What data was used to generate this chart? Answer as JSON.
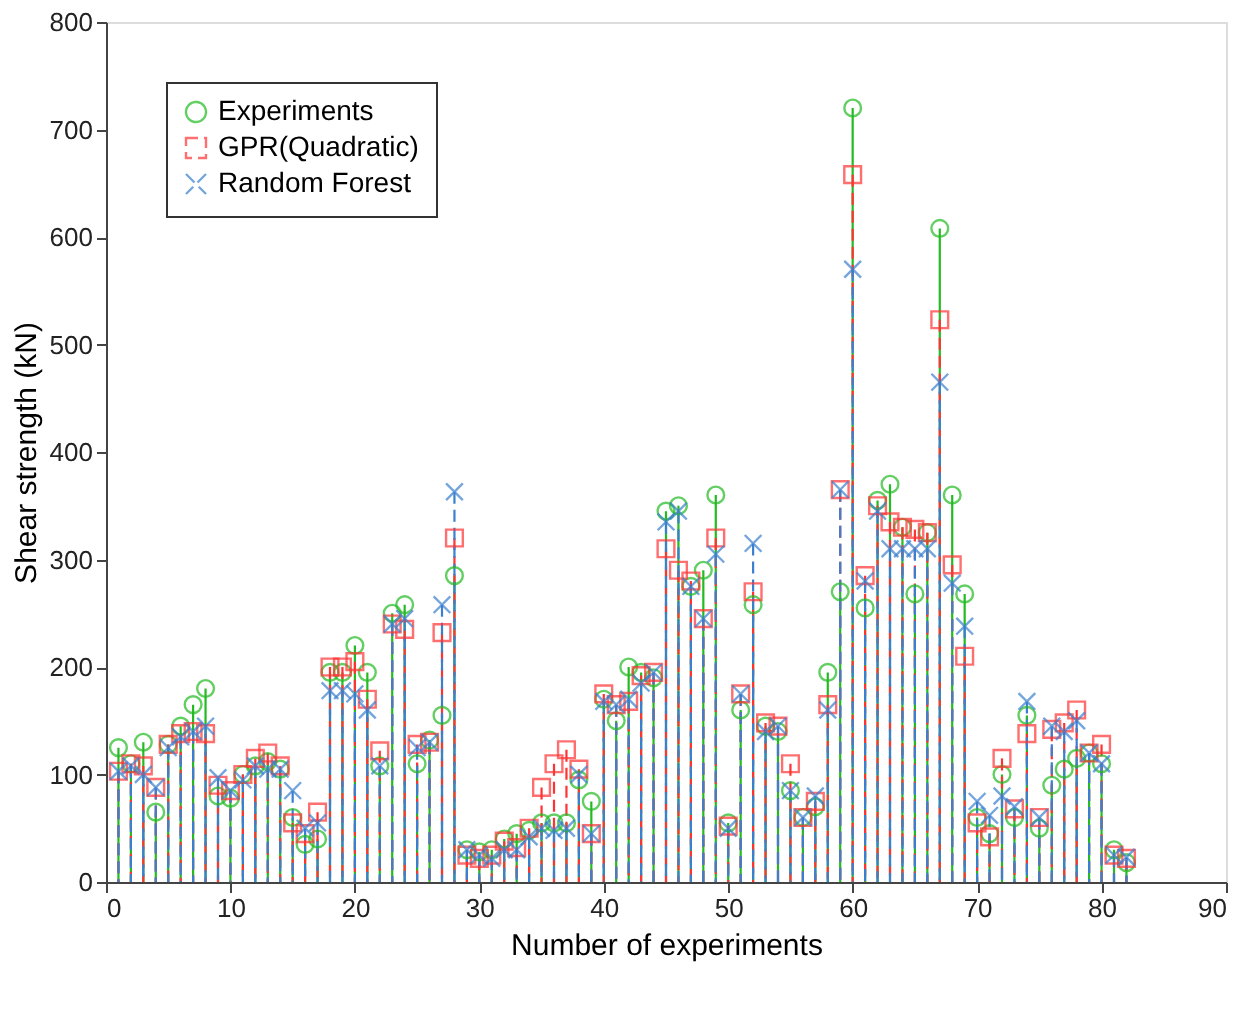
{
  "chart_data": {
    "type": "lollipop",
    "xlabel": "Number of experiments",
    "ylabel": "Shear strength (kN)",
    "x": [
      1,
      2,
      3,
      4,
      5,
      6,
      7,
      8,
      9,
      10,
      11,
      12,
      13,
      14,
      15,
      16,
      17,
      18,
      19,
      20,
      21,
      22,
      23,
      24,
      25,
      26,
      27,
      28,
      29,
      30,
      31,
      32,
      33,
      34,
      35,
      36,
      37,
      38,
      39,
      40,
      41,
      42,
      43,
      44,
      45,
      46,
      47,
      48,
      49,
      50,
      51,
      52,
      53,
      54,
      55,
      56,
      57,
      58,
      59,
      60,
      61,
      62,
      63,
      64,
      65,
      66,
      67,
      68,
      69,
      70,
      71,
      72,
      73,
      74,
      75,
      76,
      77,
      78,
      79,
      80,
      81,
      82
    ],
    "series": [
      {
        "name": "Experiments",
        "color": "#22bb22",
        "marker": "circle",
        "line_style": "solid",
        "values": [
          125,
          110,
          130,
          65,
          128,
          145,
          165,
          180,
          80,
          78,
          100,
          108,
          112,
          105,
          60,
          35,
          40,
          195,
          195,
          220,
          195,
          108,
          250,
          258,
          110,
          132,
          155,
          285,
          30,
          28,
          30,
          40,
          45,
          48,
          55,
          55,
          55,
          95,
          75,
          170,
          150,
          200,
          195,
          190,
          345,
          350,
          275,
          290,
          360,
          55,
          160,
          258,
          145,
          140,
          85,
          60,
          70,
          195,
          270,
          720,
          255,
          355,
          370,
          330,
          268,
          325,
          608,
          360,
          268,
          60,
          45,
          100,
          60,
          155,
          50,
          90,
          105,
          115,
          120,
          110,
          30,
          18
        ]
      },
      {
        "name": "GPR(Quadratic)",
        "color": "#ff3333",
        "marker": "square",
        "line_style": "dashed",
        "values": [
          103,
          110,
          108,
          88,
          128,
          138,
          140,
          138,
          90,
          85,
          100,
          115,
          120,
          108,
          55,
          45,
          65,
          200,
          200,
          205,
          170,
          122,
          240,
          235,
          128,
          130,
          232,
          320,
          25,
          22,
          25,
          38,
          32,
          50,
          88,
          110,
          123,
          105,
          45,
          175,
          165,
          168,
          192,
          195,
          310,
          290,
          280,
          245,
          320,
          52,
          175,
          270,
          148,
          145,
          110,
          60,
          75,
          165,
          365,
          658,
          285,
          350,
          335,
          330,
          328,
          325,
          523,
          295,
          210,
          55,
          42,
          115,
          68,
          138,
          60,
          142,
          148,
          160,
          120,
          128,
          25,
          22
        ]
      },
      {
        "name": "Random Forest",
        "color": "#3a7fd0",
        "marker": "cross",
        "line_style": "dashed",
        "values": [
          103,
          108,
          100,
          88,
          125,
          135,
          140,
          145,
          97,
          85,
          95,
          108,
          105,
          105,
          85,
          50,
          55,
          178,
          178,
          175,
          160,
          108,
          240,
          245,
          125,
          130,
          258,
          363,
          30,
          25,
          22,
          30,
          30,
          42,
          50,
          48,
          50,
          100,
          45,
          168,
          165,
          170,
          185,
          195,
          335,
          345,
          275,
          245,
          305,
          50,
          175,
          315,
          140,
          145,
          85,
          60,
          80,
          160,
          365,
          570,
          280,
          345,
          310,
          310,
          310,
          310,
          465,
          278,
          238,
          75,
          62,
          80,
          70,
          168,
          60,
          145,
          140,
          150,
          120,
          110,
          25,
          23
        ]
      }
    ],
    "xlim": [
      0,
      90
    ],
    "xticks": [
      0,
      10,
      20,
      30,
      40,
      50,
      60,
      70,
      80,
      90
    ],
    "ylim": [
      0,
      800
    ],
    "yticks": [
      0,
      100,
      200,
      300,
      400,
      500,
      600,
      700,
      800
    ],
    "grid": false,
    "legend": "top left"
  }
}
